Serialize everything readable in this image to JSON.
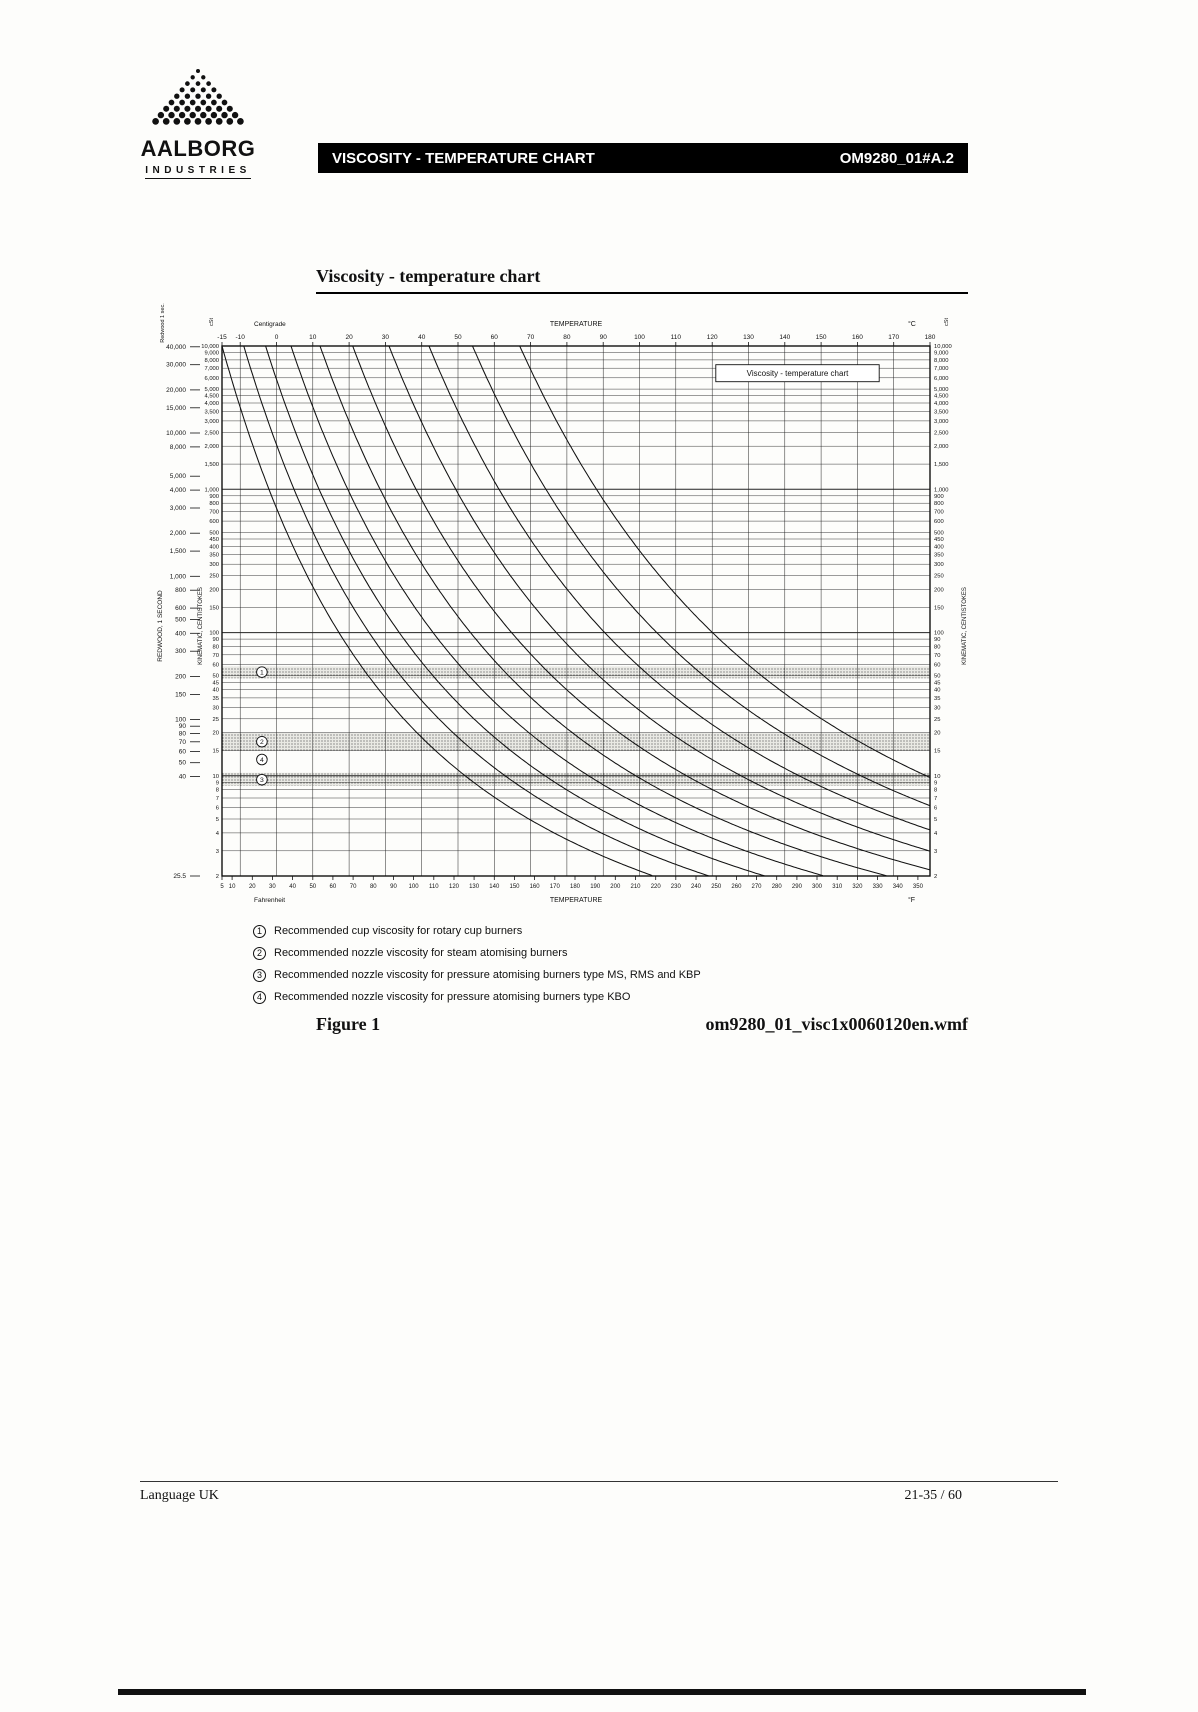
{
  "page": {
    "logo": {
      "line1": "AALBORG",
      "line2": "INDUSTRIES"
    },
    "header": {
      "title": "VISCOSITY - TEMPERATURE CHART",
      "doc_ref": "OM9280_01#A.2"
    },
    "section_heading": "Viscosity - temperature chart",
    "figure": {
      "label": "Figure 1",
      "filename": "om9280_01_visc1x0060120en.wmf"
    },
    "footer": {
      "left": "Language UK",
      "right": "21-35 / 60"
    }
  },
  "colors": {
    "header_bar_bg": "#000000",
    "header_bar_text": "#ffffff",
    "ink": "#111111",
    "band_stipple": "#555555"
  },
  "legend": {
    "items": [
      {
        "num": "1",
        "text": "Recommended cup viscosity for rotary cup burners"
      },
      {
        "num": "2",
        "text": "Recommended nozzle viscosity for steam atomising burners"
      },
      {
        "num": "3",
        "text": "Recommended nozzle viscosity for pressure atomising burners type MS, RMS and KBP"
      },
      {
        "num": "4",
        "text": "Recommended nozzle viscosity for pressure atomising burners type KBO"
      }
    ]
  },
  "chart_data": {
    "type": "line",
    "title_box": "Viscosity - temperature chart",
    "axes": {
      "top": {
        "label_left": "Centigrade",
        "label_center": "TEMPERATURE",
        "label_right": "°C",
        "range": [
          -15,
          180
        ],
        "ticks": [
          -15,
          -10,
          0,
          10,
          20,
          30,
          40,
          50,
          60,
          70,
          80,
          90,
          100,
          110,
          120,
          130,
          140,
          150,
          160,
          170,
          180
        ]
      },
      "bottom": {
        "label_left": "Fahrenheit",
        "label_center": "TEMPERATURE",
        "label_right": "°F",
        "ticks": [
          5,
          10,
          20,
          30,
          40,
          50,
          60,
          70,
          80,
          90,
          100,
          110,
          120,
          130,
          140,
          150,
          160,
          170,
          180,
          190,
          200,
          210,
          220,
          230,
          240,
          250,
          260,
          270,
          280,
          290,
          300,
          310,
          320,
          330,
          340,
          350
        ]
      },
      "left_outer": {
        "title": "REDWOOD, 1 SECOND",
        "unit": "Redwood 1 sec.",
        "ticks": [
          40000,
          30000,
          20000,
          15000,
          10000,
          8000,
          5000,
          4000,
          3000,
          2000,
          1500,
          1000,
          800,
          600,
          500,
          400,
          300,
          200,
          150,
          100,
          90,
          80,
          70,
          60,
          50,
          40
        ],
        "bottom_tick": "25.5"
      },
      "left_inner": {
        "title": "KINEMATIC, CENTISTOKES",
        "unit": "cSt",
        "ticks": [
          10000,
          9000,
          8000,
          7000,
          6000,
          5000,
          4500,
          4000,
          3500,
          3000,
          2500,
          2000,
          1500,
          1000,
          900,
          800,
          700,
          600,
          500,
          450,
          400,
          350,
          300,
          250,
          200,
          150,
          100,
          90,
          80,
          70,
          60,
          50,
          45,
          40,
          35,
          30,
          25,
          20,
          15,
          10,
          9,
          8,
          7,
          6,
          5,
          4,
          3,
          2
        ]
      },
      "right": {
        "title": "KINEMATIC, CENTISTOKES",
        "unit": "cSt",
        "ticks": [
          10000,
          9000,
          8000,
          7000,
          6000,
          5000,
          4500,
          4000,
          3500,
          3000,
          2500,
          2000,
          1500,
          1000,
          900,
          800,
          700,
          600,
          500,
          450,
          400,
          350,
          300,
          250,
          200,
          150,
          100,
          90,
          80,
          70,
          60,
          50,
          45,
          40,
          35,
          30,
          25,
          20,
          15,
          10,
          9,
          8,
          7,
          6,
          5,
          4,
          3,
          2
        ]
      },
      "v_range": [
        2,
        10000
      ]
    },
    "curves": [
      {
        "t_at_10000cst": -15,
        "t_at_10cst": 52
      },
      {
        "t_at_10000cst": -9,
        "t_at_10cst": 63
      },
      {
        "t_at_10000cst": -3,
        "t_at_10cst": 74
      },
      {
        "t_at_10000cst": 4,
        "t_at_10cst": 86
      },
      {
        "t_at_10000cst": 12,
        "t_at_10cst": 99
      },
      {
        "t_at_10000cst": 21,
        "t_at_10cst": 113
      },
      {
        "t_at_10000cst": 31,
        "t_at_10cst": 128
      },
      {
        "t_at_10000cst": 42,
        "t_at_10cst": 144
      },
      {
        "t_at_10000cst": 54,
        "t_at_10cst": 161
      },
      {
        "t_at_10000cst": 67,
        "t_at_10cst": 179
      }
    ],
    "bands": [
      {
        "num": "1",
        "v_low": 48,
        "v_high": 58
      },
      {
        "num": "2",
        "v_low": 15,
        "v_high": 20
      },
      {
        "num": "3",
        "v_low": 8.5,
        "v_high": 10.5
      }
    ],
    "markers": [
      {
        "num": "1",
        "t": -4,
        "v": 53
      },
      {
        "num": "2",
        "t": -4,
        "v": 17.3
      },
      {
        "num": "4",
        "t": -4,
        "v": 13
      },
      {
        "num": "3",
        "t": -4,
        "v": 9.4
      }
    ]
  }
}
